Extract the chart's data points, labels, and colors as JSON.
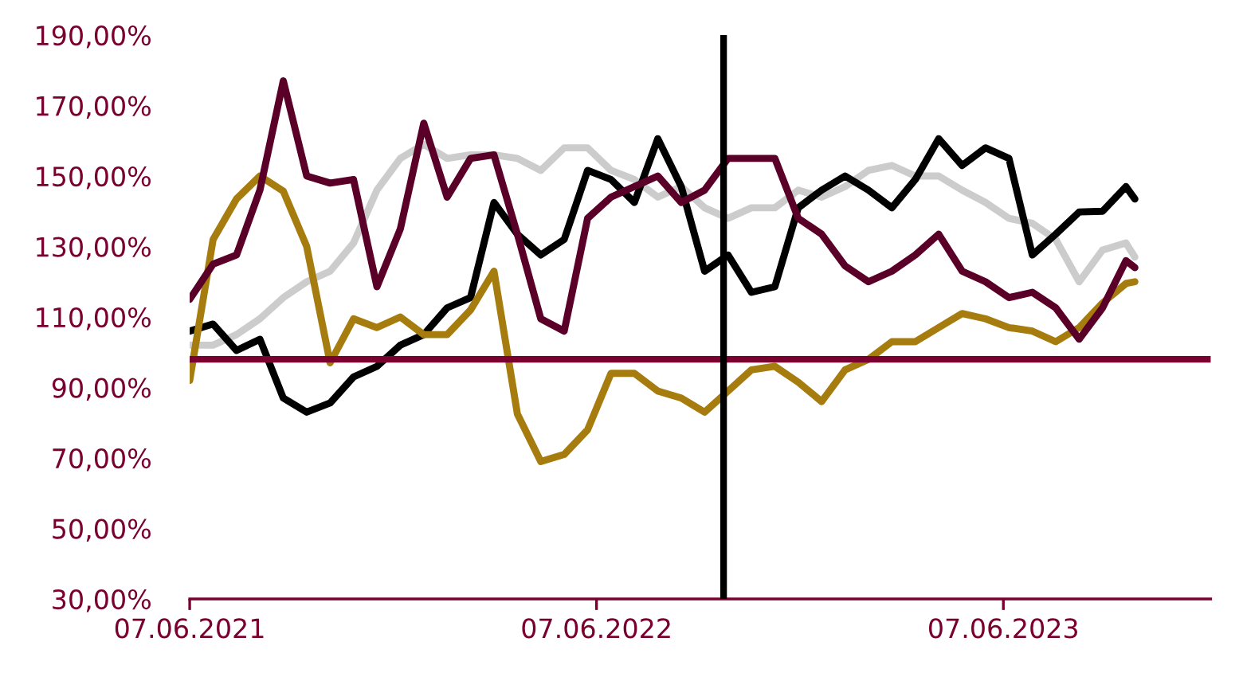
{
  "chart_data": {
    "type": "line",
    "x": [
      "2021-06-07",
      "2021-06-28",
      "2021-07-19",
      "2021-08-09",
      "2021-08-30",
      "2021-09-20",
      "2021-10-11",
      "2021-11-01",
      "2021-11-22",
      "2021-12-13",
      "2022-01-03",
      "2022-01-24",
      "2022-02-14",
      "2022-03-07",
      "2022-03-28",
      "2022-04-18",
      "2022-05-09",
      "2022-05-30",
      "2022-06-20",
      "2022-07-11",
      "2022-08-01",
      "2022-08-22",
      "2022-09-12",
      "2022-10-03",
      "2022-10-24",
      "2022-11-14",
      "2022-12-05",
      "2022-12-26",
      "2023-01-16",
      "2023-02-06",
      "2023-02-27",
      "2023-03-20",
      "2023-04-10",
      "2023-05-01",
      "2023-05-22",
      "2023-06-12",
      "2023-07-03",
      "2023-07-24",
      "2023-08-14",
      "2023-09-04",
      "2023-09-25",
      "2023-10-03"
    ],
    "series": [
      {
        "color": "#cccccc",
        "values": [
          102,
          102,
          105,
          109.5,
          115.5,
          120,
          123,
          131,
          146,
          155,
          159,
          155,
          156,
          156,
          155,
          151.6,
          158,
          158,
          151.6,
          149,
          144,
          147,
          141,
          138,
          141,
          141,
          146,
          144,
          147,
          151.6,
          153,
          150,
          150,
          146,
          142.5,
          138,
          136.6,
          132,
          120,
          129,
          131,
          127
        ]
      },
      {
        "color": "#000000",
        "values": [
          106,
          108,
          100.5,
          103.7,
          87,
          83,
          85.6,
          93,
          96,
          102,
          105,
          112.6,
          115.5,
          142.5,
          133.5,
          127.6,
          132,
          151.6,
          149,
          142.5,
          160.6,
          147,
          123,
          127.6,
          117,
          118.6,
          141,
          146,
          150,
          146,
          141,
          149,
          160.6,
          153,
          158,
          155,
          127.6,
          133.5,
          139.8,
          140,
          147,
          143.5
        ]
      },
      {
        "color": "#a67c0e",
        "values": [
          92,
          132,
          143.5,
          150,
          145.7,
          130,
          97,
          109.5,
          107,
          110,
          105,
          105,
          112,
          123,
          82.5,
          69,
          71,
          78,
          94,
          94,
          89,
          87,
          83,
          89,
          95,
          96,
          91.5,
          86,
          95,
          98,
          103,
          103,
          107,
          111,
          109.5,
          107,
          106,
          103,
          107,
          114,
          119.5,
          120
        ]
      },
      {
        "color": "#5a0028",
        "values": [
          115,
          125,
          127.6,
          146,
          177,
          150,
          148,
          149,
          118.6,
          135,
          165,
          144,
          155,
          156,
          133.5,
          109.5,
          106,
          138,
          144,
          147,
          150,
          142.5,
          146,
          155,
          155,
          155,
          138,
          133.5,
          124.5,
          120,
          123,
          127.6,
          133.5,
          123,
          120,
          115.5,
          117,
          112.6,
          103.7,
          112.6,
          126,
          124
        ]
      }
    ],
    "xlim": [
      "2021-06-07",
      "2023-12-10"
    ],
    "xticks": [
      {
        "value": "2021-06-07",
        "label": "07.06.2021"
      },
      {
        "value": "2022-06-07",
        "label": "07.06.2022"
      },
      {
        "value": "2023-06-07",
        "label": "07.06.2023"
      }
    ],
    "ylim": [
      30,
      190
    ],
    "yticks": [
      {
        "value": 30,
        "label": "30,00%"
      },
      {
        "value": 50,
        "label": "50,00%"
      },
      {
        "value": 70,
        "label": "70,00%"
      },
      {
        "value": 90,
        "label": "90,00%"
      },
      {
        "value": 110,
        "label": "110,00%"
      },
      {
        "value": 130,
        "label": "130,00%"
      },
      {
        "value": 150,
        "label": "150,00%"
      },
      {
        "value": 170,
        "label": "170,00%"
      },
      {
        "value": 190,
        "label": "190,00%"
      }
    ],
    "ref_lines": [
      {
        "axis": "y",
        "value": 98,
        "label": null,
        "color": "#7a0030"
      },
      {
        "axis": "x",
        "value": "2022-09-29",
        "label": null,
        "color": "#000000"
      }
    ],
    "grid": false,
    "legend": false,
    "marker": "none",
    "line_style": "solid"
  }
}
